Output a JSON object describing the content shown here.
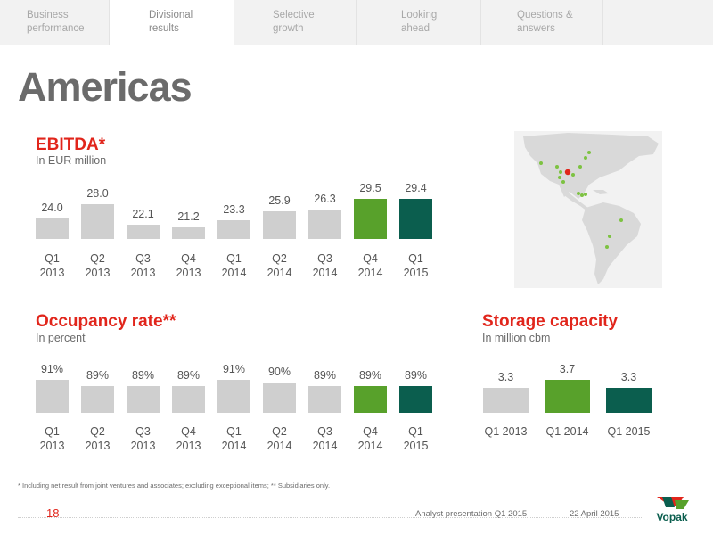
{
  "nav": {
    "tabs": [
      {
        "label": "Business performance",
        "active": false
      },
      {
        "label": "Divisional results",
        "active": true
      },
      {
        "label": "Selective growth",
        "active": false
      },
      {
        "label": "Looking ahead",
        "active": false
      },
      {
        "label": "Questions & answers",
        "active": false
      }
    ]
  },
  "page": {
    "title": "Americas"
  },
  "colors": {
    "accent_red": "#e1251b",
    "bar_grey": "#cfcfcf",
    "bar_green": "#58a12b",
    "bar_dark_green": "#0b5e4e",
    "map_land": "#d9d9d9",
    "map_terminal": "#7dc242",
    "map_hq": "#e1251b"
  },
  "chart_data": [
    {
      "type": "bar",
      "title": "EBITDA*",
      "subtitle": "In EUR million",
      "categories": [
        "Q1 2013",
        "Q2 2013",
        "Q3 2013",
        "Q4 2013",
        "Q1 2014",
        "Q2 2014",
        "Q3 2014",
        "Q4 2014",
        "Q1 2015"
      ],
      "category_lines": [
        [
          "Q1",
          "2013"
        ],
        [
          "Q2",
          "2013"
        ],
        [
          "Q3",
          "2013"
        ],
        [
          "Q4",
          "2013"
        ],
        [
          "Q1",
          "2014"
        ],
        [
          "Q2",
          "2014"
        ],
        [
          "Q3",
          "2014"
        ],
        [
          "Q4",
          "2014"
        ],
        [
          "Q1",
          "2015"
        ]
      ],
      "values": [
        24.0,
        28.0,
        22.1,
        21.2,
        23.3,
        25.9,
        26.3,
        29.5,
        29.4
      ],
      "value_labels": [
        "24.0",
        "28.0",
        "22.1",
        "21.2",
        "23.3",
        "25.9",
        "26.3",
        "29.5",
        "29.4"
      ],
      "bar_colors": [
        "grey",
        "grey",
        "grey",
        "grey",
        "grey",
        "grey",
        "grey",
        "green",
        "dark_green"
      ],
      "ylim": [
        0,
        30
      ],
      "grid": false
    },
    {
      "type": "bar",
      "title": "Occupancy rate**",
      "subtitle": "In percent",
      "categories": [
        "Q1 2013",
        "Q2 2013",
        "Q3 2013",
        "Q4 2013",
        "Q1 2014",
        "Q2 2014",
        "Q3 2014",
        "Q4 2014",
        "Q1 2015"
      ],
      "category_lines": [
        [
          "Q1",
          "2013"
        ],
        [
          "Q2",
          "2013"
        ],
        [
          "Q3",
          "2013"
        ],
        [
          "Q4",
          "2013"
        ],
        [
          "Q1",
          "2014"
        ],
        [
          "Q2",
          "2014"
        ],
        [
          "Q3",
          "2014"
        ],
        [
          "Q4",
          "2014"
        ],
        [
          "Q1",
          "2015"
        ]
      ],
      "values": [
        91,
        89,
        89,
        89,
        91,
        90,
        89,
        89,
        89
      ],
      "value_labels": [
        "91%",
        "89%",
        "89%",
        "89%",
        "91%",
        "90%",
        "89%",
        "89%",
        "89%"
      ],
      "bar_colors": [
        "grey",
        "grey",
        "grey",
        "grey",
        "grey",
        "grey",
        "grey",
        "green",
        "dark_green"
      ],
      "ylim": [
        0,
        100
      ],
      "grid": false
    },
    {
      "type": "bar",
      "title": "Storage capacity",
      "subtitle": "In million cbm",
      "categories": [
        "Q1 2013",
        "Q1 2014",
        "Q1 2015"
      ],
      "values": [
        3.3,
        3.7,
        3.3
      ],
      "value_labels": [
        "3.3",
        "3.7",
        "3.3"
      ],
      "bar_colors": [
        "grey",
        "green",
        "dark_green"
      ],
      "ylim": [
        0,
        4
      ],
      "grid": false
    }
  ],
  "footer": {
    "footnote": "* Including net result from joint ventures and associates; excluding exceptional items; ** Subsidiaries only.",
    "page_number": "18",
    "presentation": "Analyst presentation Q1 2015",
    "date": "22 April 2015",
    "logo_text": "Vopak"
  }
}
